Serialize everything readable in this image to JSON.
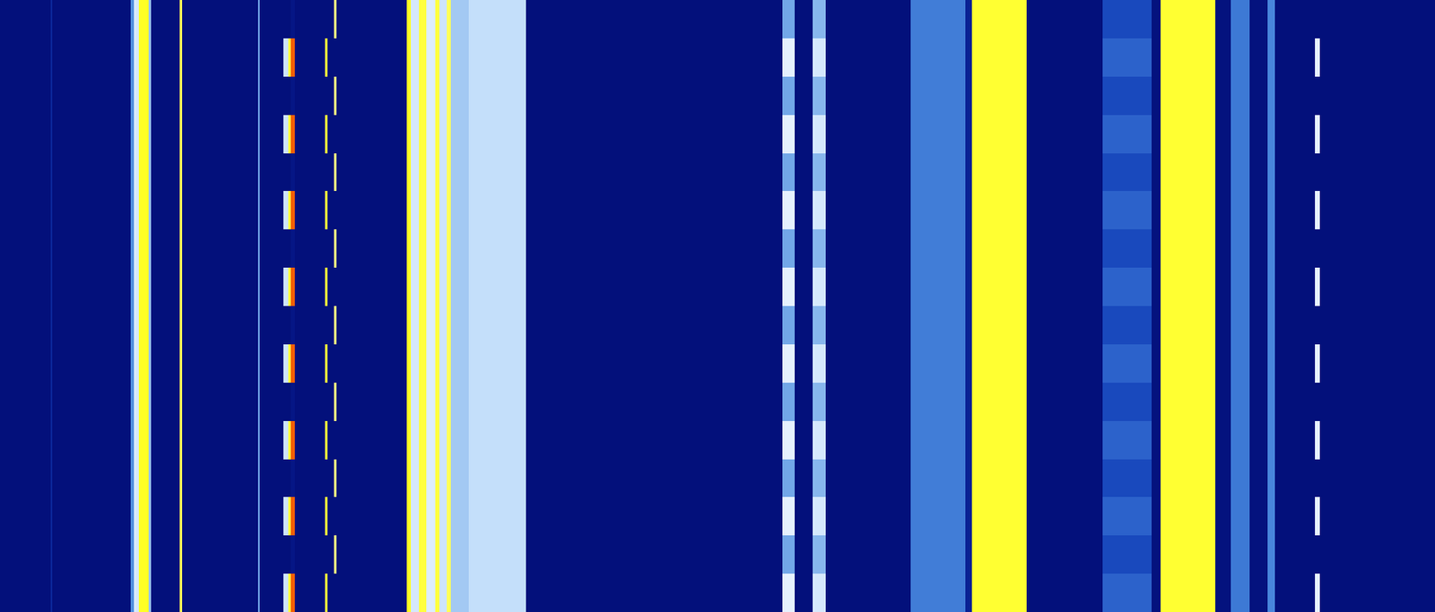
{
  "chart_data": {
    "type": "heatmap",
    "x": [
      0,
      55,
      57,
      143,
      146,
      152,
      162,
      165,
      196,
      199,
      282,
      284,
      310,
      315,
      318,
      322,
      355,
      358,
      365,
      368,
      444,
      449,
      458,
      466,
      476,
      480,
      488,
      493,
      512,
      575,
      855,
      868,
      888,
      902,
      995,
      1055,
      1062,
      1122,
      1205,
      1258,
      1268,
      1328,
      1345,
      1365,
      1385,
      1393,
      1437,
      1442,
      1568
    ],
    "y": [
      0,
      1,
      2,
      3,
      4,
      5,
      6,
      7,
      8,
      9,
      10,
      11,
      12,
      13,
      14,
      15,
      16
    ],
    "z": [
      [
        5,
        14,
        5,
        40,
        62,
        82,
        50,
        5,
        78,
        5,
        45,
        5,
        60,
        80,
        96,
        5,
        80,
        5,
        5,
        5,
        82,
        62,
        80,
        64,
        80,
        60,
        78,
        52,
        58,
        5,
        66,
        5,
        62,
        5,
        36,
        12,
        81,
        5,
        30,
        6,
        81,
        6,
        35,
        6,
        38,
        5,
        66,
        5
      ],
      [
        5,
        14,
        5,
        40,
        62,
        82,
        50,
        5,
        78,
        5,
        45,
        5,
        5,
        5,
        8,
        5,
        5,
        5,
        75,
        5,
        82,
        62,
        80,
        64,
        80,
        60,
        78,
        52,
        58,
        5,
        45,
        5,
        48,
        5,
        36,
        12,
        81,
        5,
        24,
        6,
        81,
        6,
        35,
        6,
        38,
        5,
        5,
        5
      ],
      [
        5,
        14,
        5,
        40,
        62,
        82,
        50,
        5,
        78,
        5,
        45,
        5,
        60,
        80,
        96,
        5,
        80,
        5,
        5,
        5,
        82,
        62,
        80,
        64,
        80,
        60,
        78,
        52,
        58,
        5,
        66,
        5,
        62,
        5,
        36,
        12,
        81,
        5,
        30,
        6,
        81,
        6,
        35,
        6,
        38,
        5,
        66,
        5
      ],
      [
        5,
        14,
        5,
        40,
        62,
        82,
        50,
        5,
        78,
        5,
        45,
        5,
        5,
        5,
        8,
        5,
        5,
        5,
        75,
        5,
        82,
        62,
        80,
        64,
        80,
        60,
        78,
        52,
        58,
        5,
        45,
        5,
        48,
        5,
        36,
        12,
        81,
        5,
        24,
        6,
        81,
        6,
        35,
        6,
        38,
        5,
        5,
        5
      ],
      [
        5,
        14,
        5,
        40,
        62,
        82,
        50,
        5,
        78,
        5,
        45,
        5,
        60,
        80,
        96,
        5,
        80,
        5,
        5,
        5,
        82,
        62,
        80,
        64,
        80,
        60,
        78,
        52,
        58,
        5,
        66,
        5,
        62,
        5,
        36,
        12,
        81,
        5,
        30,
        6,
        81,
        6,
        35,
        6,
        38,
        5,
        66,
        5
      ],
      [
        5,
        14,
        5,
        40,
        62,
        82,
        50,
        5,
        78,
        5,
        45,
        5,
        5,
        5,
        8,
        5,
        5,
        5,
        75,
        5,
        82,
        62,
        80,
        64,
        80,
        60,
        78,
        52,
        58,
        5,
        45,
        5,
        48,
        5,
        36,
        12,
        81,
        5,
        24,
        6,
        81,
        6,
        35,
        6,
        38,
        5,
        5,
        5
      ],
      [
        5,
        14,
        5,
        40,
        62,
        82,
        50,
        5,
        78,
        5,
        45,
        5,
        60,
        80,
        96,
        5,
        80,
        5,
        5,
        5,
        82,
        62,
        80,
        64,
        80,
        60,
        78,
        52,
        58,
        5,
        66,
        5,
        62,
        5,
        36,
        12,
        81,
        5,
        30,
        6,
        81,
        6,
        35,
        6,
        38,
        5,
        66,
        5
      ],
      [
        5,
        14,
        5,
        40,
        62,
        82,
        50,
        5,
        78,
        5,
        45,
        5,
        5,
        5,
        8,
        5,
        5,
        5,
        75,
        5,
        82,
        62,
        80,
        64,
        80,
        60,
        78,
        52,
        58,
        5,
        45,
        5,
        48,
        5,
        36,
        12,
        81,
        5,
        24,
        6,
        81,
        6,
        35,
        6,
        38,
        5,
        5,
        5
      ],
      [
        5,
        14,
        5,
        40,
        62,
        82,
        50,
        5,
        78,
        5,
        45,
        5,
        60,
        80,
        96,
        5,
        80,
        5,
        5,
        5,
        82,
        62,
        80,
        64,
        80,
        60,
        78,
        52,
        58,
        5,
        66,
        5,
        62,
        5,
        36,
        12,
        81,
        5,
        30,
        6,
        81,
        6,
        35,
        6,
        38,
        5,
        66,
        5
      ],
      [
        5,
        14,
        5,
        40,
        62,
        82,
        50,
        5,
        78,
        5,
        45,
        5,
        5,
        5,
        8,
        5,
        5,
        5,
        75,
        5,
        82,
        62,
        80,
        64,
        80,
        60,
        78,
        52,
        58,
        5,
        45,
        5,
        48,
        5,
        36,
        12,
        81,
        5,
        24,
        6,
        81,
        6,
        35,
        6,
        38,
        5,
        5,
        5
      ],
      [
        5,
        14,
        5,
        40,
        62,
        82,
        50,
        5,
        78,
        5,
        45,
        5,
        60,
        80,
        96,
        5,
        80,
        5,
        5,
        5,
        82,
        62,
        80,
        64,
        80,
        60,
        78,
        52,
        58,
        5,
        66,
        5,
        62,
        5,
        36,
        12,
        81,
        5,
        30,
        6,
        81,
        6,
        35,
        6,
        38,
        5,
        66,
        5
      ],
      [
        5,
        14,
        5,
        40,
        62,
        82,
        50,
        5,
        78,
        5,
        45,
        5,
        5,
        5,
        8,
        5,
        5,
        5,
        75,
        5,
        82,
        62,
        80,
        64,
        80,
        60,
        78,
        52,
        58,
        5,
        45,
        5,
        48,
        5,
        36,
        12,
        81,
        5,
        24,
        6,
        81,
        6,
        35,
        6,
        38,
        5,
        5,
        5
      ],
      [
        5,
        14,
        5,
        40,
        62,
        82,
        50,
        5,
        78,
        5,
        45,
        5,
        60,
        80,
        96,
        5,
        80,
        5,
        5,
        5,
        82,
        62,
        80,
        64,
        80,
        60,
        78,
        52,
        58,
        5,
        66,
        5,
        62,
        5,
        36,
        12,
        81,
        5,
        30,
        6,
        81,
        6,
        35,
        6,
        38,
        5,
        66,
        5
      ],
      [
        5,
        14,
        5,
        40,
        62,
        82,
        50,
        5,
        78,
        5,
        45,
        5,
        5,
        5,
        8,
        5,
        5,
        5,
        75,
        5,
        82,
        62,
        80,
        64,
        80,
        60,
        78,
        52,
        58,
        5,
        45,
        5,
        48,
        5,
        36,
        12,
        81,
        5,
        24,
        6,
        81,
        6,
        35,
        6,
        38,
        5,
        5,
        5
      ],
      [
        5,
        14,
        5,
        40,
        62,
        82,
        50,
        5,
        78,
        5,
        45,
        5,
        60,
        80,
        96,
        5,
        80,
        5,
        5,
        5,
        82,
        62,
        80,
        64,
        80,
        60,
        78,
        52,
        58,
        5,
        66,
        5,
        62,
        5,
        36,
        12,
        81,
        5,
        30,
        6,
        81,
        6,
        35,
        6,
        38,
        5,
        66,
        5
      ],
      [
        5,
        14,
        5,
        40,
        62,
        82,
        50,
        5,
        78,
        5,
        45,
        5,
        5,
        5,
        8,
        5,
        5,
        5,
        75,
        5,
        82,
        62,
        80,
        64,
        80,
        60,
        78,
        52,
        58,
        5,
        45,
        5,
        48,
        5,
        36,
        12,
        81,
        5,
        24,
        6,
        81,
        6,
        35,
        6,
        38,
        5,
        5,
        5
      ]
    ],
    "xlim": [
      0,
      1568
    ],
    "ylim": [
      0,
      16
    ],
    "zlim": [
      0,
      100
    ],
    "tick_labels": false,
    "grid": false
  }
}
